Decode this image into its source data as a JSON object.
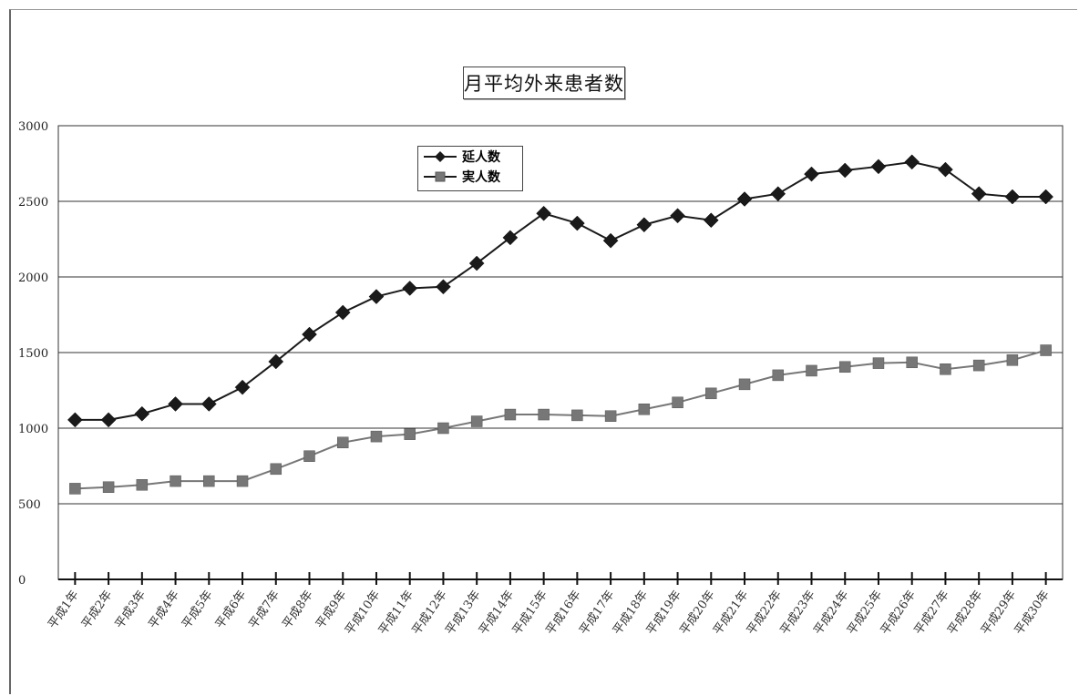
{
  "chart_data": {
    "type": "line",
    "title": "月平均外来患者数",
    "categories": [
      "平成1年",
      "平成2年",
      "平成3年",
      "平成4年",
      "平成5年",
      "平成6年",
      "平成7年",
      "平成8年",
      "平成9年",
      "平成10年",
      "平成11年",
      "平成12年",
      "平成13年",
      "平成14年",
      "平成15年",
      "平成16年",
      "平成17年",
      "平成18年",
      "平成19年",
      "平成20年",
      "平成21年",
      "平成22年",
      "平成23年",
      "平成24年",
      "平成25年",
      "平成26年",
      "平成27年",
      "平成28年",
      "平成29年",
      "平成30年"
    ],
    "series": [
      {
        "name": "延人数",
        "color": "#1a1a1a",
        "marker": "diamond",
        "values": [
          1055,
          1055,
          1095,
          1160,
          1160,
          1270,
          1440,
          1620,
          1765,
          1870,
          1925,
          1935,
          2090,
          2260,
          2420,
          2355,
          2240,
          2345,
          2405,
          2375,
          2515,
          2550,
          2680,
          2705,
          2730,
          2760,
          2710,
          2550,
          2530,
          2530
        ]
      },
      {
        "name": "実人数",
        "color": "#777777",
        "marker": "square",
        "values": [
          600,
          610,
          625,
          650,
          650,
          650,
          730,
          815,
          905,
          945,
          960,
          1000,
          1045,
          1090,
          1090,
          1085,
          1080,
          1125,
          1170,
          1230,
          1290,
          1350,
          1380,
          1405,
          1430,
          1435,
          1390,
          1415,
          1450,
          1515
        ]
      }
    ],
    "ylim": [
      0,
      3000
    ],
    "yticks": [
      "0",
      "500",
      "1000",
      "1500",
      "2000",
      "2500",
      "3000"
    ],
    "grid": true,
    "legend_position": "top-center"
  }
}
